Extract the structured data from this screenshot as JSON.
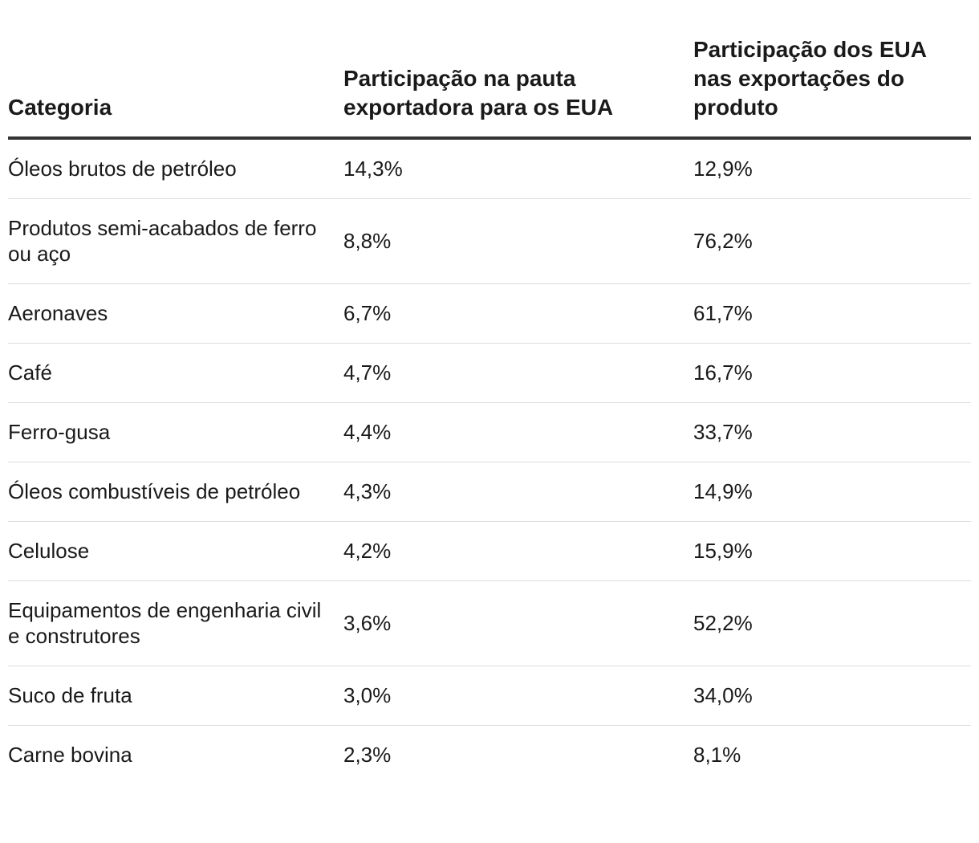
{
  "chart_data": {
    "type": "table",
    "columns": [
      "Categoria",
      "Participação na pauta exportadora para os EUA",
      "Participação dos EUA nas exportações do produto"
    ],
    "rows": [
      [
        "Óleos brutos de petróleo",
        "14,3%",
        "12,9%"
      ],
      [
        "Produtos semi-acabados de ferro ou aço",
        "8,8%",
        "76,2%"
      ],
      [
        "Aeronaves",
        "6,7%",
        "61,7%"
      ],
      [
        "Café",
        "4,7%",
        "16,7%"
      ],
      [
        "Ferro-gusa",
        "4,4%",
        "33,7%"
      ],
      [
        "Óleos combustíveis de petróleo",
        "4,3%",
        "14,9%"
      ],
      [
        "Celulose",
        "4,2%",
        "15,9%"
      ],
      [
        "Equipamentos de engenharia civil e construtores",
        "3,6%",
        "52,2%"
      ],
      [
        "Suco de fruta",
        "3,0%",
        "34,0%"
      ],
      [
        "Carne bovina",
        "2,3%",
        "8,1%"
      ]
    ]
  }
}
